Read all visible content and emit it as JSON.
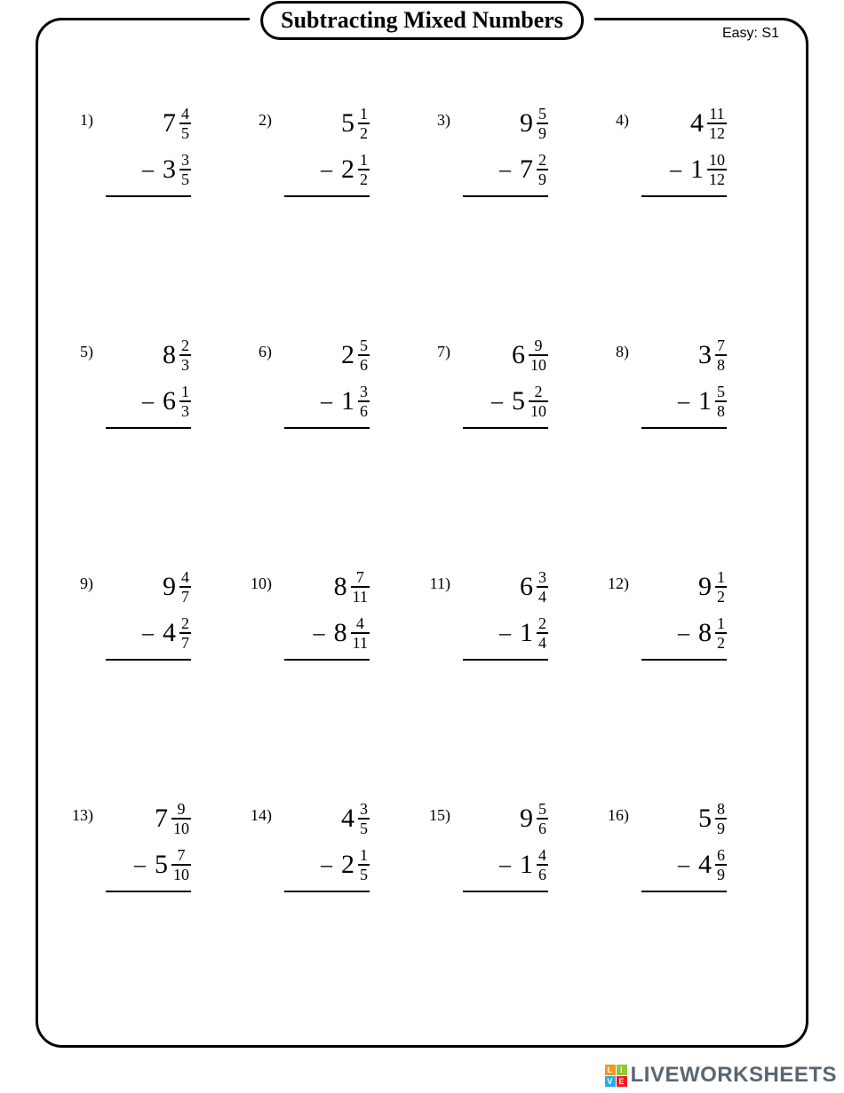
{
  "title": "Subtracting Mixed Numbers",
  "difficulty": "Easy: S1",
  "problems": [
    {
      "n": "1)",
      "a": {
        "w": "7",
        "num": "4",
        "den": "5"
      },
      "b": {
        "w": "3",
        "num": "3",
        "den": "5"
      }
    },
    {
      "n": "2)",
      "a": {
        "w": "5",
        "num": "1",
        "den": "2"
      },
      "b": {
        "w": "2",
        "num": "1",
        "den": "2"
      }
    },
    {
      "n": "3)",
      "a": {
        "w": "9",
        "num": "5",
        "den": "9"
      },
      "b": {
        "w": "7",
        "num": "2",
        "den": "9"
      }
    },
    {
      "n": "4)",
      "a": {
        "w": "4",
        "num": "11",
        "den": "12"
      },
      "b": {
        "w": "1",
        "num": "10",
        "den": "12"
      }
    },
    {
      "n": "5)",
      "a": {
        "w": "8",
        "num": "2",
        "den": "3"
      },
      "b": {
        "w": "6",
        "num": "1",
        "den": "3"
      }
    },
    {
      "n": "6)",
      "a": {
        "w": "2",
        "num": "5",
        "den": "6"
      },
      "b": {
        "w": "1",
        "num": "3",
        "den": "6"
      }
    },
    {
      "n": "7)",
      "a": {
        "w": "6",
        "num": "9",
        "den": "10"
      },
      "b": {
        "w": "5",
        "num": "2",
        "den": "10"
      }
    },
    {
      "n": "8)",
      "a": {
        "w": "3",
        "num": "7",
        "den": "8"
      },
      "b": {
        "w": "1",
        "num": "5",
        "den": "8"
      }
    },
    {
      "n": "9)",
      "a": {
        "w": "9",
        "num": "4",
        "den": "7"
      },
      "b": {
        "w": "4",
        "num": "2",
        "den": "7"
      }
    },
    {
      "n": "10)",
      "a": {
        "w": "8",
        "num": "7",
        "den": "11"
      },
      "b": {
        "w": "8",
        "num": "4",
        "den": "11"
      }
    },
    {
      "n": "11)",
      "a": {
        "w": "6",
        "num": "3",
        "den": "4"
      },
      "b": {
        "w": "1",
        "num": "2",
        "den": "4"
      }
    },
    {
      "n": "12)",
      "a": {
        "w": "9",
        "num": "1",
        "den": "2"
      },
      "b": {
        "w": "8",
        "num": "1",
        "den": "2"
      }
    },
    {
      "n": "13)",
      "a": {
        "w": "7",
        "num": "9",
        "den": "10"
      },
      "b": {
        "w": "5",
        "num": "7",
        "den": "10"
      }
    },
    {
      "n": "14)",
      "a": {
        "w": "4",
        "num": "3",
        "den": "5"
      },
      "b": {
        "w": "2",
        "num": "1",
        "den": "5"
      }
    },
    {
      "n": "15)",
      "a": {
        "w": "9",
        "num": "5",
        "den": "6"
      },
      "b": {
        "w": "1",
        "num": "4",
        "den": "6"
      }
    },
    {
      "n": "16)",
      "a": {
        "w": "5",
        "num": "8",
        "den": "9"
      },
      "b": {
        "w": "4",
        "num": "6",
        "den": "9"
      }
    }
  ],
  "minus_sign": "–",
  "watermark": {
    "badge": [
      "L",
      "I",
      "V",
      "E"
    ],
    "badge_colors": [
      "#f7931e",
      "#8cc63f",
      "#29abe2",
      "#ed1c24"
    ],
    "text": "LIVEWORKSHEETS",
    "text_color": "#5a6670"
  }
}
